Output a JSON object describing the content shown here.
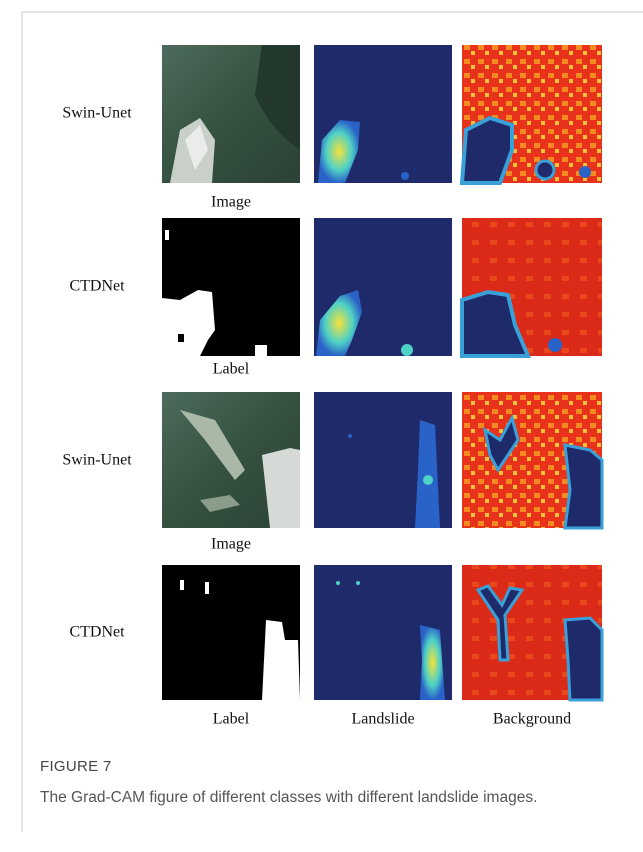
{
  "figure": {
    "rows": [
      {
        "label": "Swin-Unet",
        "caption": "Image"
      },
      {
        "label": "CTDNet",
        "caption": "Label"
      },
      {
        "label": "Swin-Unet",
        "caption": "Image"
      },
      {
        "label": "CTDNet",
        "caption": "Label"
      }
    ],
    "column_labels": [
      "Landslide",
      "Background"
    ],
    "label": "FIGURE 7",
    "caption": "The Grad-CAM figure of different classes with different landslide images."
  }
}
